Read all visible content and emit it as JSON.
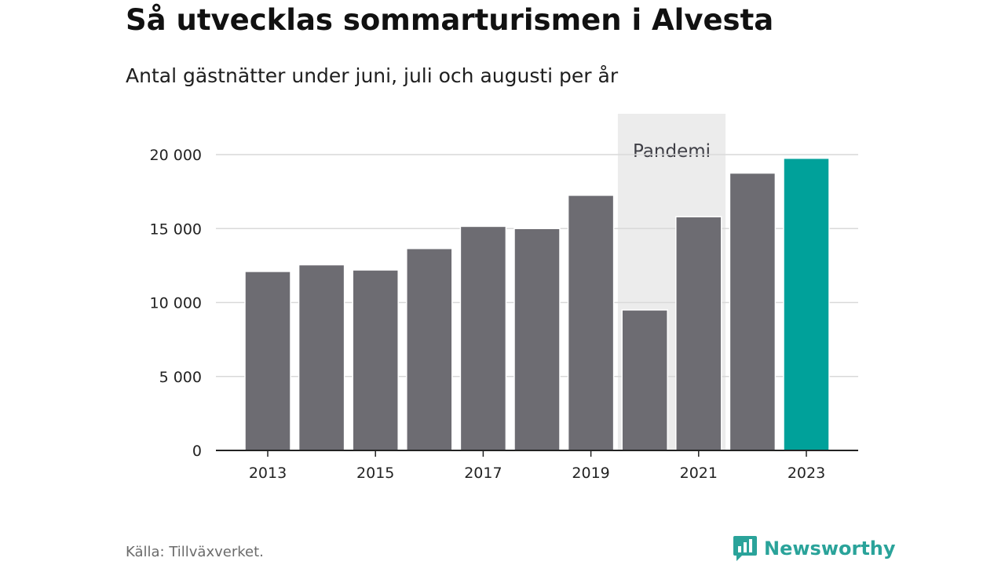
{
  "header": {
    "title": "Så utvecklas sommarturismen i Alvesta",
    "subtitle": "Antal gästnätter under juni, juli och augusti per år"
  },
  "chart_data": {
    "type": "bar",
    "categories": [
      "2013",
      "2014",
      "2015",
      "2016",
      "2017",
      "2018",
      "2019",
      "2020",
      "2021",
      "2022",
      "2023"
    ],
    "values": [
      12100,
      12550,
      12200,
      13650,
      15150,
      15000,
      17250,
      9500,
      15800,
      18750,
      19750
    ],
    "x_tick_labels": [
      "2013",
      "2015",
      "2017",
      "2019",
      "2021",
      "2023"
    ],
    "y_ticks": [
      0,
      5000,
      10000,
      15000,
      20000
    ],
    "y_tick_labels": [
      "0",
      "5 000",
      "10 000",
      "15 000",
      "20 000"
    ],
    "ylim": [
      0,
      22000
    ],
    "grid": true,
    "highlight": {
      "category": "2023",
      "color": "#00a19a"
    },
    "bar_color": "#6d6c72",
    "annotation": {
      "label": "Pandemi",
      "from": "2020",
      "to": "2021",
      "color": "#ececec"
    }
  },
  "footer": {
    "source": "Källa: Tillväxverket.",
    "brand": "Newsworthy",
    "brand_icon": "newsworthy-logo-icon",
    "brand_color": "#2aa39a"
  }
}
